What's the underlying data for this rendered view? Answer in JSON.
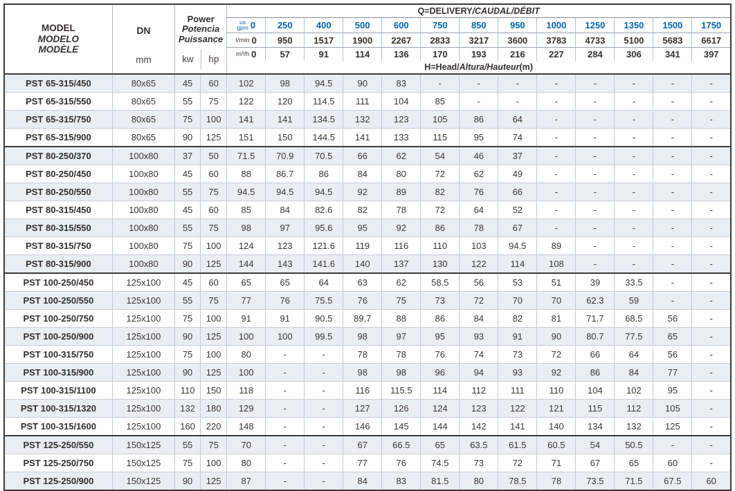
{
  "header": {
    "model_title": [
      "MODEL",
      "MODELO",
      "MODÈLE"
    ],
    "model_unit": "mm",
    "dn_label": "DN",
    "power_title": [
      "Power",
      "Potencia",
      "Puissance"
    ],
    "power_units": [
      "kw",
      "hp"
    ],
    "q_title": {
      "plain": "Q=DELIVERY",
      "italic": "/CAUDAL/DÉBIT"
    },
    "h_title": {
      "plain": "H=Head/",
      "italic": "Altura/Hauteur",
      "suffix": "(m)"
    },
    "flow": {
      "gpm_unit_top": "us",
      "gpm_unit_bottom": "gpm",
      "gpm": [
        "0",
        "250",
        "400",
        "500",
        "600",
        "750",
        "850",
        "950",
        "1000",
        "1250",
        "1350",
        "1500",
        "1750"
      ],
      "lmin_unit": "l/min",
      "lmin": [
        "0",
        "950",
        "1517",
        "1900",
        "2267",
        "2833",
        "3217",
        "3600",
        "3783",
        "4733",
        "5100",
        "5683",
        "6617"
      ],
      "m3h_unit": "m³/h",
      "m3h": [
        "0",
        "57",
        "91",
        "114",
        "136",
        "170",
        "193",
        "216",
        "227",
        "284",
        "306",
        "341",
        "397"
      ]
    }
  },
  "rows": [
    {
      "model": "PST 65-315/450",
      "dn": "80x65",
      "kw": "45",
      "hp": "60",
      "head": [
        "102",
        "98",
        "94.5",
        "90",
        "83",
        "-",
        "-",
        "-",
        "-",
        "-",
        "-",
        "-",
        "-"
      ]
    },
    {
      "model": "PST 65-315/550",
      "dn": "80x65",
      "kw": "55",
      "hp": "75",
      "head": [
        "122",
        "120",
        "114.5",
        "111",
        "104",
        "85",
        "-",
        "-",
        "-",
        "-",
        "-",
        "-",
        "-"
      ]
    },
    {
      "model": "PST 65-315/750",
      "dn": "80x65",
      "kw": "75",
      "hp": "100",
      "head": [
        "141",
        "141",
        "134.5",
        "132",
        "123",
        "105",
        "86",
        "64",
        "-",
        "-",
        "-",
        "-",
        "-"
      ]
    },
    {
      "model": "PST 65-315/900",
      "dn": "80x65",
      "kw": "90",
      "hp": "125",
      "head": [
        "151",
        "150",
        "144.5",
        "141",
        "133",
        "115",
        "95",
        "74",
        "-",
        "-",
        "-",
        "-",
        "-"
      ]
    },
    {
      "model": "PST 80-250/370",
      "dn": "100x80",
      "kw": "37",
      "hp": "50",
      "head": [
        "71.5",
        "70.9",
        "70.5",
        "66",
        "62",
        "54",
        "46",
        "37",
        "-",
        "-",
        "-",
        "-",
        "-"
      ]
    },
    {
      "model": "PST 80-250/450",
      "dn": "100x80",
      "kw": "45",
      "hp": "60",
      "head": [
        "88",
        "86.7",
        "86",
        "84",
        "80",
        "72",
        "62",
        "49",
        "-",
        "-",
        "-",
        "-",
        "-"
      ]
    },
    {
      "model": "PST 80-250/550",
      "dn": "100x80",
      "kw": "55",
      "hp": "75",
      "head": [
        "94.5",
        "94.5",
        "94.5",
        "92",
        "89",
        "82",
        "76",
        "66",
        "-",
        "-",
        "-",
        "-",
        "-"
      ]
    },
    {
      "model": "PST 80-315/450",
      "dn": "100x80",
      "kw": "45",
      "hp": "60",
      "head": [
        "85",
        "84",
        "82.6",
        "82",
        "78",
        "72",
        "64",
        "52",
        "-",
        "-",
        "-",
        "-",
        "-"
      ]
    },
    {
      "model": "PST 80-315/550",
      "dn": "100x80",
      "kw": "55",
      "hp": "75",
      "head": [
        "98",
        "97",
        "95.6",
        "95",
        "92",
        "86",
        "78",
        "67",
        "-",
        "-",
        "-",
        "-",
        "-"
      ]
    },
    {
      "model": "PST 80-315/750",
      "dn": "100x80",
      "kw": "75",
      "hp": "100",
      "head": [
        "124",
        "123",
        "121.6",
        "119",
        "116",
        "110",
        "103",
        "94.5",
        "89",
        "-",
        "-",
        "-",
        "-"
      ]
    },
    {
      "model": "PST 80-315/900",
      "dn": "100x80",
      "kw": "90",
      "hp": "125",
      "head": [
        "144",
        "143",
        "141.6",
        "140",
        "137",
        "130",
        "122",
        "114",
        "108",
        "-",
        "-",
        "-",
        "-"
      ]
    },
    {
      "model": "PST 100-250/450",
      "dn": "125x100",
      "kw": "45",
      "hp": "60",
      "head": [
        "65",
        "65",
        "64",
        "63",
        "62",
        "58.5",
        "56",
        "53",
        "51",
        "39",
        "33.5",
        "-",
        "-"
      ]
    },
    {
      "model": "PST 100-250/550",
      "dn": "125x100",
      "kw": "55",
      "hp": "75",
      "head": [
        "77",
        "76",
        "75.5",
        "76",
        "75",
        "73",
        "72",
        "70",
        "70",
        "62.3",
        "59",
        "-",
        "-"
      ]
    },
    {
      "model": "PST 100-250/750",
      "dn": "125x100",
      "kw": "75",
      "hp": "100",
      "head": [
        "91",
        "91",
        "90.5",
        "89.7",
        "88",
        "86",
        "84",
        "82",
        "81",
        "71.7",
        "68.5",
        "56",
        "-"
      ]
    },
    {
      "model": "PST 100-250/900",
      "dn": "125x100",
      "kw": "90",
      "hp": "125",
      "head": [
        "100",
        "100",
        "99.5",
        "98",
        "97",
        "95",
        "93",
        "91",
        "90",
        "80.7",
        "77.5",
        "65",
        "-"
      ]
    },
    {
      "model": "PST 100-315/750",
      "dn": "125x100",
      "kw": "75",
      "hp": "100",
      "head": [
        "80",
        "-",
        "-",
        "78",
        "78",
        "76",
        "74",
        "73",
        "72",
        "66",
        "64",
        "56",
        "-"
      ]
    },
    {
      "model": "PST 100-315/900",
      "dn": "125x100",
      "kw": "90",
      "hp": "125",
      "head": [
        "100",
        "-",
        "-",
        "98",
        "98",
        "96",
        "94",
        "93",
        "92",
        "86",
        "84",
        "77",
        "-"
      ]
    },
    {
      "model": "PST 100-315/1100",
      "dn": "125x100",
      "kw": "110",
      "hp": "150",
      "head": [
        "118",
        "-",
        "-",
        "116",
        "115.5",
        "114",
        "112",
        "111",
        "110",
        "104",
        "102",
        "95",
        "-"
      ]
    },
    {
      "model": "PST 100-315/1320",
      "dn": "125x100",
      "kw": "132",
      "hp": "180",
      "head": [
        "129",
        "-",
        "-",
        "127",
        "126",
        "124",
        "123",
        "122",
        "121",
        "115",
        "112",
        "105",
        "-"
      ]
    },
    {
      "model": "PST 100-315/1600",
      "dn": "125x100",
      "kw": "160",
      "hp": "220",
      "head": [
        "148",
        "-",
        "-",
        "146",
        "145",
        "144",
        "142",
        "141",
        "140",
        "134",
        "132",
        "125",
        "-"
      ]
    },
    {
      "model": "PST 125-250/550",
      "dn": "150x125",
      "kw": "55",
      "hp": "75",
      "head": [
        "70",
        "-",
        "-",
        "67",
        "66.5",
        "65",
        "63.5",
        "61.5",
        "60.5",
        "54",
        "50.5",
        "-",
        "-"
      ]
    },
    {
      "model": "PST 125-250/750",
      "dn": "150x125",
      "kw": "75",
      "hp": "100",
      "head": [
        "80",
        "-",
        "-",
        "77",
        "76",
        "74.5",
        "73",
        "72",
        "71",
        "67",
        "65",
        "60",
        "-"
      ]
    },
    {
      "model": "PST 125-250/900",
      "dn": "150x125",
      "kw": "90",
      "hp": "125",
      "head": [
        "87",
        "-",
        "-",
        "84",
        "83",
        "81.5",
        "80",
        "78.5",
        "78",
        "73.5",
        "71.5",
        "67.5",
        "60"
      ]
    }
  ],
  "group_starts": [
    4,
    11,
    20
  ],
  "colors": {
    "accent_blue": "#0065b3",
    "row_alt": "#e9edf4",
    "border_dark": "#3d3a38",
    "border_light": "#c3c9d3"
  }
}
